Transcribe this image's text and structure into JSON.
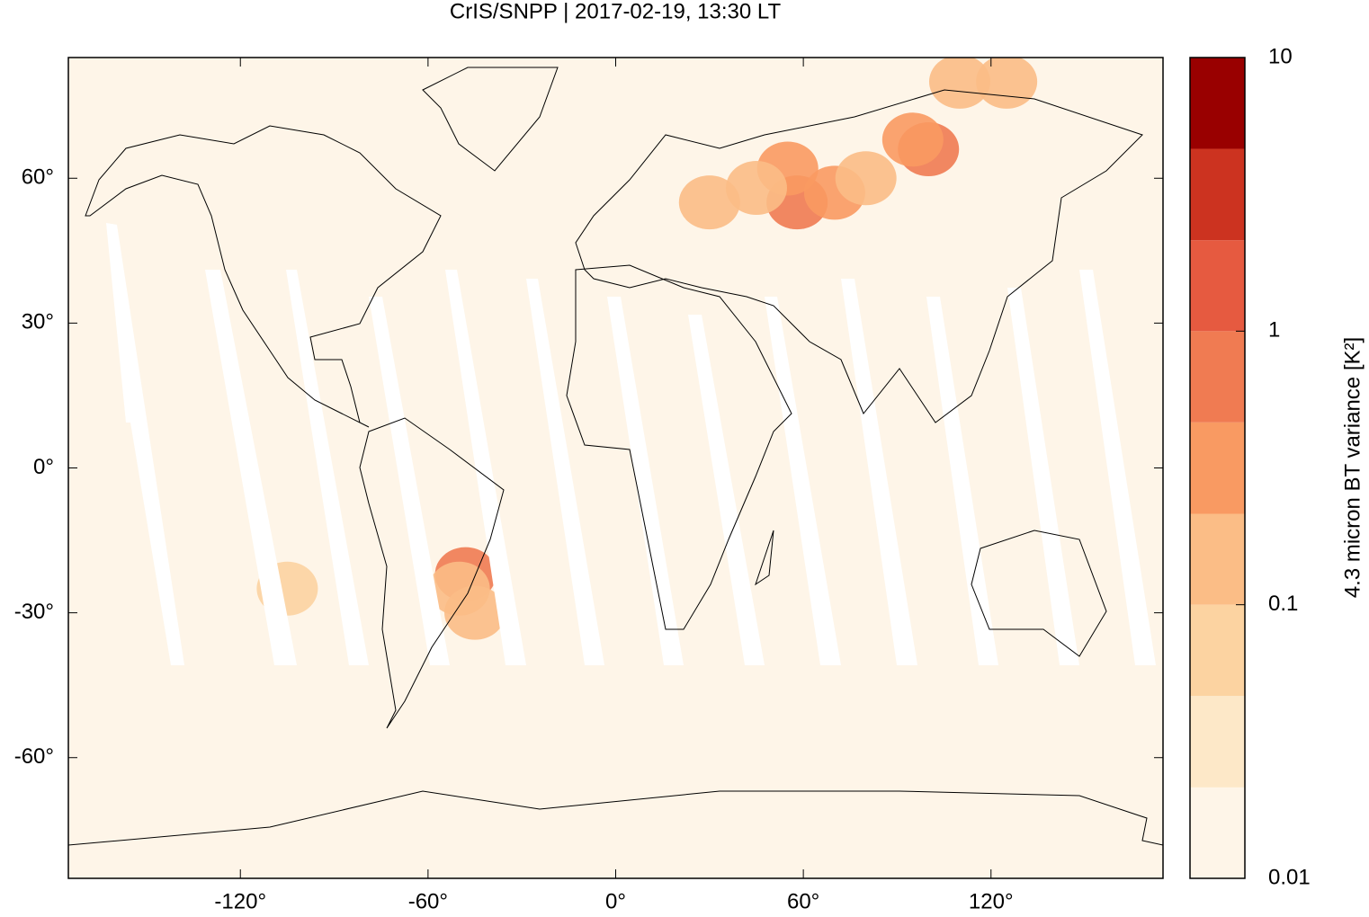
{
  "chart_data": {
    "type": "map",
    "title": "CrIS/SNPP | 2017-02-19, 13:30 LT",
    "xlim": [
      -175,
      175
    ],
    "ylim": [
      -85,
      85
    ],
    "xticks": [
      {
        "value": -120,
        "label": "-120°"
      },
      {
        "value": -60,
        "label": "-60°"
      },
      {
        "value": 0,
        "label": "0°"
      },
      {
        "value": 60,
        "label": "60°"
      },
      {
        "value": 120,
        "label": "120°"
      }
    ],
    "yticks": [
      {
        "value": 60,
        "label": "60°"
      },
      {
        "value": 30,
        "label": "30°"
      },
      {
        "value": 0,
        "label": "0°"
      },
      {
        "value": -30,
        "label": "-30°"
      },
      {
        "value": -60,
        "label": "-60°"
      }
    ],
    "x": [
      58,
      55,
      70,
      100,
      95,
      45,
      80,
      30,
      -48,
      -50,
      -45,
      110,
      125,
      -105
    ],
    "y": [
      55,
      62,
      57,
      66,
      68,
      58,
      60,
      55,
      -22,
      -25,
      -30,
      80,
      80,
      -25
    ],
    "values": [
      0.6,
      0.4,
      0.3,
      0.5,
      0.3,
      0.2,
      0.15,
      0.12,
      0.5,
      0.2,
      0.15,
      0.2,
      0.1,
      0.05
    ],
    "colorbar": {
      "label": "4.3 micron BT variance [K²]",
      "log": true,
      "lim": [
        0.01,
        10
      ],
      "ticks": [
        0.01,
        0.1,
        1,
        10
      ],
      "levels": [
        0.01,
        0.0215,
        0.0464,
        0.1,
        0.215,
        0.464,
        1,
        2.15,
        4.64,
        10
      ],
      "colors": [
        "#fef5e8",
        "#fde8c8",
        "#fcd3a1",
        "#fbbd86",
        "#f99a62",
        "#f07b52",
        "#e65a40",
        "#cc3320",
        "#990000"
      ]
    }
  }
}
